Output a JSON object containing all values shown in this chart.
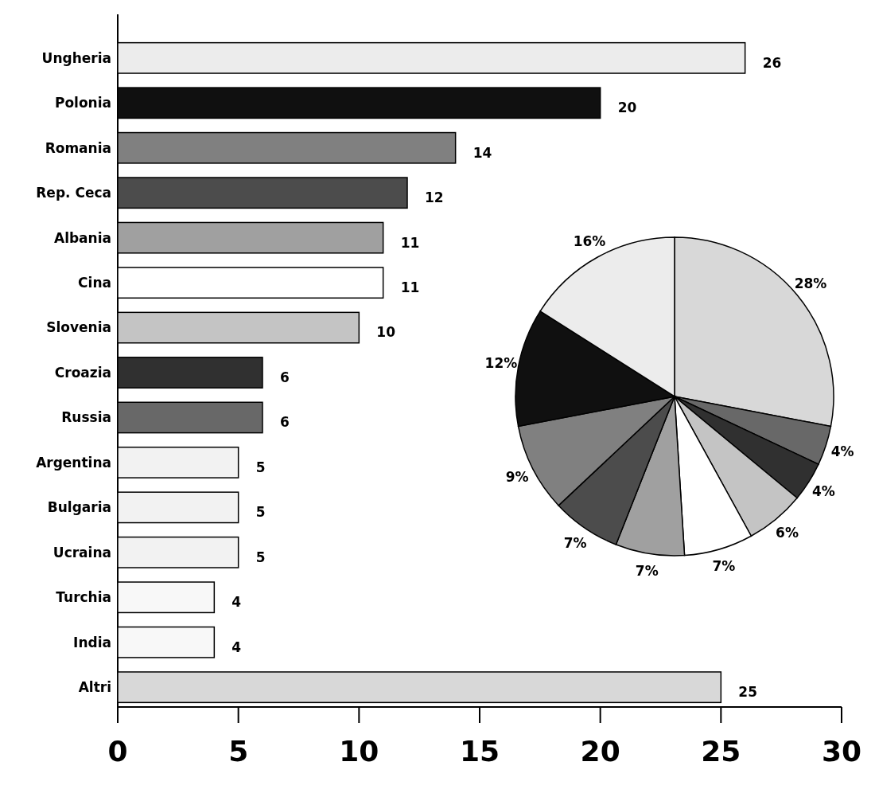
{
  "chart_data": [
    {
      "type": "bar",
      "orientation": "horizontal",
      "categories": [
        "Ungheria",
        "Polonia",
        "Romania",
        "Rep. Ceca",
        "Albania",
        "Cina",
        "Slovenia",
        "Croazia",
        "Russia",
        "Argentina",
        "Bulgaria",
        "Ucraina",
        "Turchia",
        "India",
        "Altri"
      ],
      "values": [
        26,
        20,
        14,
        12,
        11,
        11,
        10,
        6,
        6,
        5,
        5,
        5,
        4,
        4,
        25
      ],
      "colors": [
        "#ececec",
        "#101010",
        "#808080",
        "#4c4c4c",
        "#a0a0a0",
        "#ffffff",
        "#c4c4c4",
        "#303030",
        "#686868",
        "#f2f2f2",
        "#f2f2f2",
        "#f2f2f2",
        "#f8f8f8",
        "#f8f8f8",
        "#d8d8d8"
      ],
      "xlim": [
        0,
        30
      ],
      "xticks": [
        0,
        5,
        10,
        15,
        20,
        25,
        30
      ],
      "data_labels": true
    },
    {
      "type": "pie",
      "categories": [
        null,
        null,
        null,
        null,
        null,
        null,
        null,
        null,
        null,
        null
      ],
      "values": [
        28,
        4,
        4,
        6,
        7,
        7,
        7,
        9,
        12,
        16
      ],
      "colors": [
        "#d8d8d8",
        "#686868",
        "#303030",
        "#c4c4c4",
        "#ffffff",
        "#a0a0a0",
        "#4c4c4c",
        "#808080",
        "#101010",
        "#ececec"
      ],
      "value_labels": [
        "28%",
        "4%",
        "4%",
        "6%",
        "7%",
        "7%",
        "7%",
        "9%",
        "12%",
        "16%"
      ]
    }
  ]
}
